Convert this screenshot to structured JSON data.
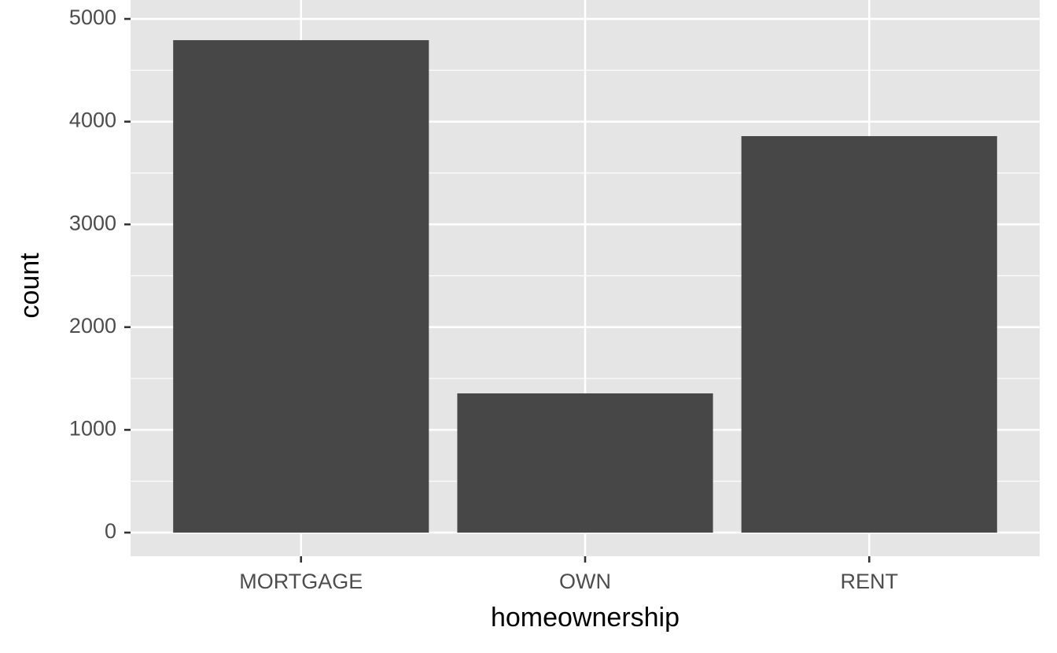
{
  "chart_data": {
    "type": "bar",
    "x_label": "homeownership",
    "y_label": "count",
    "categories": [
      "MORTGAGE",
      "OWN",
      "RENT"
    ],
    "values": [
      4793,
      1355,
      3859
    ],
    "color": "#474747",
    "ylim": [
      -230,
      5184
    ],
    "yticks": [
      0,
      1000,
      2000,
      3000,
      4000,
      5000
    ],
    "grid": true
  }
}
